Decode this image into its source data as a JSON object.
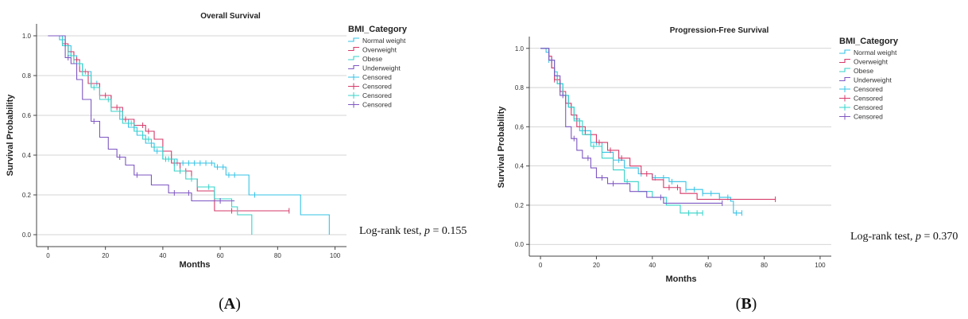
{
  "colors": {
    "normal": "#35c3e6",
    "overweight": "#d63a6a",
    "obese": "#35d3c9",
    "underweight": "#7e57c2",
    "grid": "#c8c8c8",
    "axis": "#444444"
  },
  "chart_data": [
    {
      "type": "line",
      "panel_label": "A",
      "title": "Overall Survival",
      "xlabel": "Months",
      "ylabel": "Survival Probability",
      "xlim": [
        -4,
        104
      ],
      "ylim": [
        -0.06,
        1.06
      ],
      "xticks": [
        "0",
        "20",
        "40",
        "60",
        "80",
        "100"
      ],
      "yticks": [
        "0.0",
        "0.2",
        "0.4",
        "0.6",
        "0.8",
        "1.0"
      ],
      "grid": "horizontal",
      "legend": {
        "title": "BMI_Category",
        "position": "top-right",
        "items": [
          "Normal weight",
          "Overweight",
          "Obese",
          "Underweight",
          "Censored",
          "Censored",
          "Censored",
          "Censored"
        ]
      },
      "annotation": {
        "text": "Log-rank test, ",
        "p": "p",
        "rest": " = 0.155"
      },
      "series": [
        {
          "name": "Normal weight",
          "color_key": "normal",
          "x": [
            0,
            4,
            6,
            8,
            10,
            12,
            15,
            18,
            22,
            25,
            28,
            31,
            34,
            37,
            40,
            45,
            52,
            58,
            62,
            65,
            70,
            75,
            88,
            98
          ],
          "y": [
            1.0,
            0.98,
            0.95,
            0.9,
            0.86,
            0.82,
            0.76,
            0.7,
            0.64,
            0.58,
            0.54,
            0.5,
            0.46,
            0.42,
            0.38,
            0.36,
            0.36,
            0.34,
            0.3,
            0.3,
            0.2,
            0.2,
            0.1,
            0.0
          ],
          "censored": [
            5,
            9,
            13,
            17,
            30,
            38,
            41,
            43,
            45,
            47,
            49,
            51,
            53,
            55,
            57,
            59,
            61,
            63,
            65,
            72
          ]
        },
        {
          "name": "Overweight",
          "color_key": "overweight",
          "x": [
            0,
            5,
            7,
            9,
            11,
            14,
            18,
            22,
            26,
            30,
            34,
            37,
            40,
            43,
            46,
            50,
            52,
            58,
            68,
            84
          ],
          "y": [
            1.0,
            0.96,
            0.92,
            0.88,
            0.82,
            0.76,
            0.7,
            0.64,
            0.58,
            0.55,
            0.52,
            0.48,
            0.42,
            0.36,
            0.32,
            0.28,
            0.22,
            0.12,
            0.12,
            0.12
          ],
          "censored": [
            6,
            10,
            15,
            20,
            24,
            27,
            33,
            35,
            44,
            46,
            48,
            64,
            84
          ]
        },
        {
          "name": "Obese",
          "color_key": "obese",
          "x": [
            0,
            5,
            7,
            9,
            12,
            15,
            18,
            22,
            26,
            30,
            33,
            36,
            40,
            44,
            48,
            52,
            58,
            64,
            66,
            70,
            71
          ],
          "y": [
            1.0,
            0.95,
            0.9,
            0.86,
            0.8,
            0.74,
            0.68,
            0.62,
            0.56,
            0.52,
            0.48,
            0.44,
            0.38,
            0.32,
            0.28,
            0.24,
            0.18,
            0.14,
            0.1,
            0.1,
            0.0
          ],
          "censored": [
            8,
            11,
            16,
            21,
            29,
            35,
            42,
            46,
            50,
            56
          ]
        },
        {
          "name": "Underweight",
          "color_key": "underweight",
          "x": [
            0,
            6,
            8,
            10,
            12,
            15,
            18,
            21,
            24,
            27,
            30,
            36,
            42,
            50,
            56,
            65
          ],
          "y": [
            1.0,
            0.89,
            0.86,
            0.78,
            0.68,
            0.57,
            0.49,
            0.43,
            0.39,
            0.35,
            0.3,
            0.25,
            0.21,
            0.17,
            0.17,
            0.17
          ],
          "censored": [
            7,
            16,
            25,
            31,
            44,
            49,
            60
          ]
        }
      ]
    },
    {
      "type": "line",
      "panel_label": "B",
      "title": "Progression-Free Survival",
      "xlabel": "Months",
      "ylabel": "Survival Probability",
      "xlim": [
        -4,
        104
      ],
      "ylim": [
        -0.06,
        1.06
      ],
      "xticks": [
        "0",
        "20",
        "40",
        "60",
        "80",
        "100"
      ],
      "yticks": [
        "0.0",
        "0.2",
        "0.4",
        "0.6",
        "0.8",
        "1.0"
      ],
      "grid": "horizontal",
      "legend": {
        "title": "BMI_Category",
        "position": "top-right",
        "items": [
          "Normal weight",
          "Overweight",
          "Obese",
          "Underweight",
          "Censored",
          "Censored",
          "Censored",
          "Censored"
        ]
      },
      "annotation": {
        "text": "Log-rank test, ",
        "p": "p",
        "rest": " = 0.370"
      },
      "series": [
        {
          "name": "Normal weight",
          "color_key": "normal",
          "x": [
            0,
            2,
            3,
            4,
            5,
            6,
            8,
            10,
            12,
            14,
            18,
            22,
            26,
            30,
            35,
            40,
            46,
            52,
            58,
            64,
            68,
            69,
            72
          ],
          "y": [
            1.0,
            0.98,
            0.94,
            0.9,
            0.86,
            0.82,
            0.76,
            0.7,
            0.64,
            0.58,
            0.52,
            0.47,
            0.43,
            0.39,
            0.36,
            0.34,
            0.32,
            0.28,
            0.26,
            0.24,
            0.22,
            0.16,
            0.16
          ],
          "censored": [
            3,
            7,
            11,
            15,
            20,
            28,
            36,
            41,
            44,
            47,
            52,
            55,
            58,
            61,
            64,
            67,
            70,
            72
          ]
        },
        {
          "name": "Overweight",
          "color_key": "overweight",
          "x": [
            0,
            3,
            4,
            5,
            7,
            9,
            11,
            13,
            16,
            20,
            24,
            28,
            32,
            36,
            40,
            44,
            50,
            56,
            84
          ],
          "y": [
            1.0,
            0.96,
            0.9,
            0.84,
            0.78,
            0.72,
            0.66,
            0.6,
            0.56,
            0.52,
            0.48,
            0.44,
            0.4,
            0.36,
            0.33,
            0.29,
            0.26,
            0.23,
            0.23
          ],
          "censored": [
            5,
            8,
            21,
            25,
            29,
            38,
            46,
            49,
            84
          ]
        },
        {
          "name": "Obese",
          "color_key": "obese",
          "x": [
            0,
            3,
            5,
            6,
            8,
            10,
            12,
            15,
            18,
            22,
            26,
            30,
            35,
            40,
            45,
            50,
            54,
            58
          ],
          "y": [
            1.0,
            0.94,
            0.88,
            0.82,
            0.76,
            0.7,
            0.63,
            0.56,
            0.5,
            0.44,
            0.38,
            0.32,
            0.27,
            0.24,
            0.2,
            0.16,
            0.16,
            0.16
          ],
          "censored": [
            9,
            14,
            19,
            31,
            53,
            56,
            58
          ]
        },
        {
          "name": "Underweight",
          "color_key": "underweight",
          "x": [
            0,
            3,
            5,
            7,
            9,
            11,
            13,
            15,
            18,
            20,
            24,
            28,
            32,
            38,
            44,
            50,
            56,
            62,
            65
          ],
          "y": [
            1.0,
            0.94,
            0.86,
            0.76,
            0.6,
            0.54,
            0.48,
            0.44,
            0.39,
            0.34,
            0.31,
            0.31,
            0.27,
            0.24,
            0.21,
            0.21,
            0.21,
            0.21,
            0.21
          ],
          "censored": [
            4,
            8,
            12,
            17,
            22,
            26,
            43,
            65
          ]
        }
      ]
    }
  ]
}
